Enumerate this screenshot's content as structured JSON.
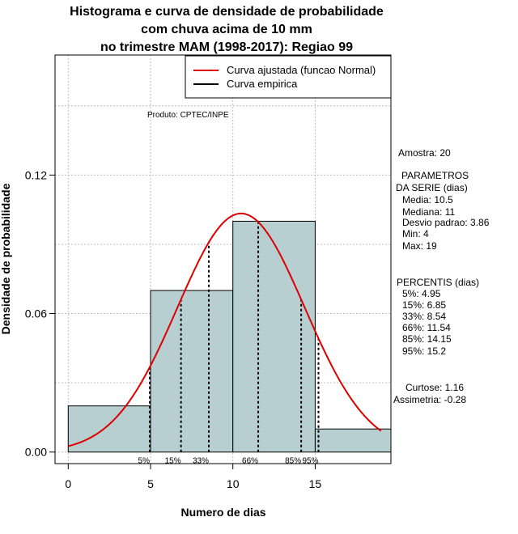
{
  "title_lines": [
    "Histograma e curva de densidade de probabilidade",
    "com chuva acima de 10 mm",
    "no trimestre MAM (1998-2017): Regiao 99"
  ],
  "product_label": "Produto: CPTEC/INPE",
  "chart_data": {
    "type": "bar",
    "title": "Histograma e curva de densidade de probabilidade com chuva acima de 10 mm no trimestre MAM (1998-2017): Regiao 99",
    "xlabel": "Numero de dias",
    "ylabel": "Densidade de probabilidade",
    "xlim": [
      -0.8,
      19.6
    ],
    "ylim": [
      -0.005,
      0.172
    ],
    "x_ticks": [
      0,
      5,
      10,
      15
    ],
    "y_ticks": [
      0.0,
      0.06,
      0.12
    ],
    "y_tick_labels": [
      "0.00",
      "0.06",
      "0.12"
    ],
    "bins": [
      {
        "from": 0,
        "to": 5,
        "density": 0.02
      },
      {
        "from": 5,
        "to": 10,
        "density": 0.07
      },
      {
        "from": 10,
        "to": 15,
        "density": 0.1
      },
      {
        "from": 15,
        "to": 20,
        "density": 0.01
      }
    ],
    "normal_fit": {
      "mean": 10.5,
      "sd": 3.86,
      "x_from": 0,
      "x_to": 19
    },
    "percentiles": [
      {
        "label": "5%",
        "value": 4.95
      },
      {
        "label": "15%",
        "value": 6.85
      },
      {
        "label": "33%",
        "value": 8.54
      },
      {
        "label": "66%",
        "value": 11.54
      },
      {
        "label": "85%",
        "value": 14.15
      },
      {
        "label": "95%",
        "value": 15.2
      }
    ],
    "grid": true,
    "legend": {
      "position": "top-right",
      "entries": [
        {
          "label": "Curva ajustada (funcao Normal)",
          "color": "#dd0000"
        },
        {
          "label": "Curva empirica",
          "color": "#000000"
        }
      ]
    }
  },
  "colors": {
    "bar_fill": "#b7cfd0",
    "curve": "#dd0000",
    "grid": "#bbbbbb"
  },
  "stats": {
    "sample": "Amostra: 20",
    "params_title_1": "PARAMETROS",
    "params_title_2": "DA SERIE (dias)",
    "params": [
      "Media: 10.5",
      "Mediana: 11",
      "Desvio padrao: 3.86",
      "Min: 4",
      "Max: 19"
    ],
    "percentis_title": "PERCENTIS (dias)",
    "percentis": [
      "5%: 4.95",
      "15%: 6.85",
      "33%: 8.54",
      "66%: 11.54",
      "85%: 14.15",
      "95%: 15.2"
    ],
    "curtose": "Curtose: 1.16",
    "assimetria": "Assimetria: -0.28"
  }
}
